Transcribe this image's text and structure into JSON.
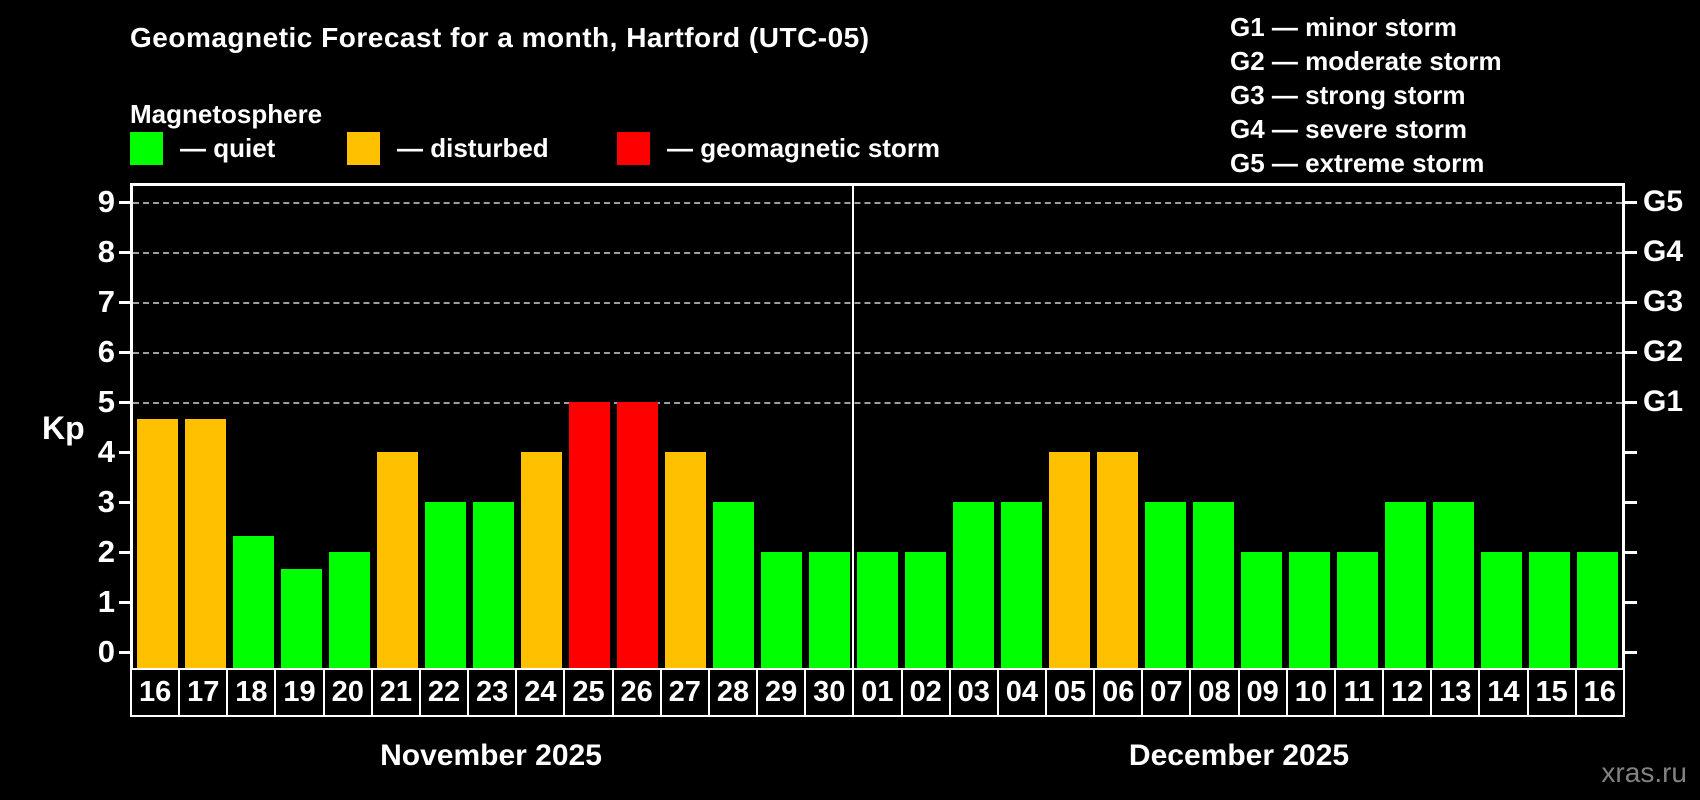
{
  "title": "Geomagnetic Forecast for a month, Hartford (UTC-05)",
  "subtitle": "Magnetosphere",
  "legend": {
    "items": [
      {
        "key": "quiet",
        "label": "— quiet",
        "color": "#00ff00"
      },
      {
        "key": "disturbed",
        "label": "— disturbed",
        "color": "#ffc000"
      },
      {
        "key": "storm",
        "label": "— geomagnetic storm",
        "color": "#ff0000"
      }
    ]
  },
  "g_legend": [
    {
      "label": "G1 — minor storm"
    },
    {
      "label": "G2 — moderate storm"
    },
    {
      "label": "G3 — strong storm"
    },
    {
      "label": "G4 — severe storm"
    },
    {
      "label": "G5 — extreme storm"
    }
  ],
  "axes": {
    "y_axis_label": "Kp",
    "y_ticks": [
      0,
      1,
      2,
      3,
      4,
      5,
      6,
      7,
      8,
      9
    ],
    "right_axis_labels": [
      {
        "label": "G1",
        "kp": 5
      },
      {
        "label": "G2",
        "kp": 6
      },
      {
        "label": "G3",
        "kp": 7
      },
      {
        "label": "G4",
        "kp": 8
      },
      {
        "label": "G5",
        "kp": 9
      }
    ]
  },
  "months": [
    {
      "label": "November 2025",
      "days_count": 15
    },
    {
      "label": "December 2025",
      "days_count": 16
    }
  ],
  "watermark": "xras.ru",
  "chart_data": {
    "type": "bar",
    "title": "Geomagnetic Forecast for a month, Hartford (UTC-05)",
    "ylabel": "Kp",
    "ylim": [
      0,
      9
    ],
    "grid": "dashed horizontal lines at Kp 5-9 (G1-G5)",
    "legend_position": "top-left",
    "grid_levels_kp": [
      5,
      6,
      7,
      8,
      9
    ],
    "status_colors": {
      "quiet": "#00ff00",
      "disturbed": "#ffc000",
      "storm": "#ff0000"
    },
    "categories": [
      "16",
      "17",
      "18",
      "19",
      "20",
      "21",
      "22",
      "23",
      "24",
      "25",
      "26",
      "27",
      "28",
      "29",
      "30",
      "01",
      "02",
      "03",
      "04",
      "05",
      "06",
      "07",
      "08",
      "09",
      "10",
      "11",
      "12",
      "13",
      "14",
      "15",
      "16"
    ],
    "values": [
      4.67,
      4.67,
      2.33,
      1.67,
      2,
      4,
      3,
      3,
      4,
      5,
      5,
      4,
      3,
      2,
      2,
      2,
      2,
      3,
      3,
      4,
      4,
      3,
      3,
      2,
      2,
      2,
      3,
      3,
      2,
      2,
      2
    ],
    "statuses": [
      "disturbed",
      "disturbed",
      "quiet",
      "quiet",
      "quiet",
      "disturbed",
      "quiet",
      "quiet",
      "disturbed",
      "storm",
      "storm",
      "disturbed",
      "quiet",
      "quiet",
      "quiet",
      "quiet",
      "quiet",
      "quiet",
      "quiet",
      "disturbed",
      "disturbed",
      "quiet",
      "quiet",
      "quiet",
      "quiet",
      "quiet",
      "quiet",
      "quiet",
      "quiet",
      "quiet",
      "quiet"
    ]
  }
}
